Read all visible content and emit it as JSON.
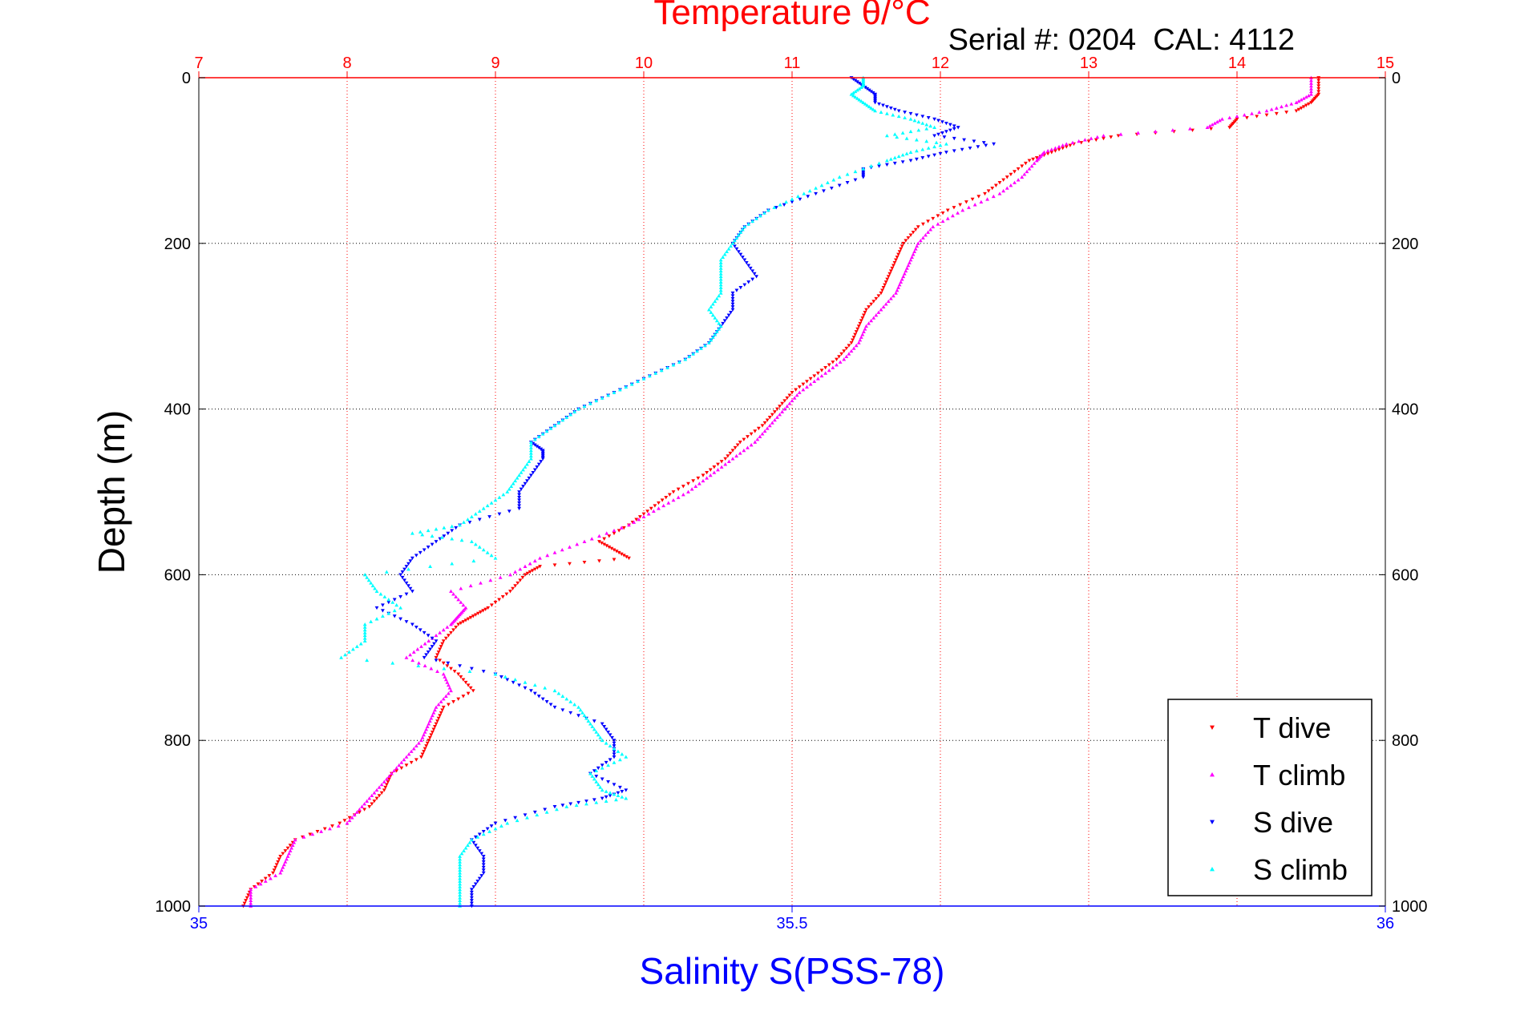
{
  "chart_data": {
    "type": "scatter",
    "title": "Temperature θ/°C",
    "subtitle": "Serial #: 0204  CAL: 4112",
    "ylabel": "Depth (m)",
    "xlabel_bottom": "Salinity S(PSS-78)",
    "xlabel_top": "Temperature θ/°C",
    "y_reversed": true,
    "ylim": [
      0,
      1000
    ],
    "yticks": [
      0,
      200,
      400,
      600,
      800,
      1000
    ],
    "x_top": {
      "label": "Temperature θ/°C",
      "lim": [
        7,
        15
      ],
      "ticks": [
        7,
        8,
        9,
        10,
        11,
        12,
        13,
        14,
        15
      ],
      "color": "#ff0000"
    },
    "x_bottom": {
      "label": "Salinity S(PSS-78)",
      "lim": [
        35,
        36
      ],
      "ticks": [
        "35",
        "35.5",
        "36"
      ],
      "tick_values": [
        35,
        35.5,
        36
      ],
      "color": "#0000ff"
    },
    "grid": true,
    "legend_position": "bottom-right",
    "series": [
      {
        "name": "T dive",
        "axis": "top",
        "color": "#ff0000",
        "marker": "triangle-down",
        "depth": [
          0,
          20,
          30,
          40,
          50,
          60,
          70,
          80,
          90,
          100,
          120,
          140,
          160,
          180,
          200,
          220,
          240,
          260,
          280,
          300,
          320,
          340,
          360,
          380,
          400,
          420,
          440,
          460,
          480,
          500,
          520,
          540,
          560,
          570,
          580,
          590,
          600,
          620,
          640,
          650,
          660,
          680,
          700,
          720,
          740,
          760,
          780,
          800,
          820,
          840,
          860,
          880,
          900,
          920,
          940,
          960,
          980,
          1000
        ],
        "values": [
          14.55,
          14.55,
          14.5,
          14.4,
          14.0,
          13.95,
          13.2,
          12.9,
          12.75,
          12.6,
          12.45,
          12.3,
          12.05,
          11.85,
          11.75,
          11.7,
          11.65,
          11.6,
          11.5,
          11.45,
          11.4,
          11.3,
          11.15,
          11.0,
          10.9,
          10.8,
          10.65,
          10.55,
          10.4,
          10.2,
          10.05,
          9.9,
          9.7,
          9.8,
          9.9,
          9.3,
          9.2,
          9.1,
          8.95,
          8.85,
          8.75,
          8.65,
          8.6,
          8.75,
          8.85,
          8.65,
          8.6,
          8.55,
          8.5,
          8.3,
          8.25,
          8.15,
          7.95,
          7.65,
          7.55,
          7.5,
          7.35,
          7.3
        ]
      },
      {
        "name": "T climb",
        "axis": "top",
        "color": "#ff00ff",
        "marker": "triangle-up",
        "depth": [
          0,
          20,
          30,
          40,
          50,
          60,
          70,
          80,
          90,
          100,
          120,
          140,
          160,
          180,
          200,
          220,
          240,
          260,
          280,
          300,
          320,
          340,
          360,
          380,
          400,
          420,
          440,
          460,
          480,
          500,
          520,
          540,
          560,
          580,
          600,
          620,
          640,
          650,
          660,
          680,
          700,
          720,
          740,
          760,
          780,
          800,
          820,
          840,
          860,
          880,
          900,
          920,
          940,
          960,
          980,
          1000
        ],
        "values": [
          14.5,
          14.5,
          14.4,
          14.2,
          13.9,
          13.8,
          13.1,
          12.85,
          12.7,
          12.65,
          12.55,
          12.4,
          12.15,
          11.95,
          11.85,
          11.8,
          11.75,
          11.7,
          11.6,
          11.5,
          11.45,
          11.35,
          11.2,
          11.05,
          10.95,
          10.85,
          10.75,
          10.6,
          10.45,
          10.3,
          10.1,
          9.9,
          9.6,
          9.3,
          9.1,
          8.7,
          8.8,
          8.75,
          8.7,
          8.55,
          8.4,
          8.65,
          8.7,
          8.6,
          8.55,
          8.5,
          8.4,
          8.3,
          8.2,
          8.1,
          8.0,
          7.65,
          7.6,
          7.55,
          7.35,
          7.35
        ]
      },
      {
        "name": "S dive",
        "axis": "bottom",
        "color": "#0000ff",
        "marker": "triangle-down",
        "depth": [
          0,
          10,
          20,
          30,
          40,
          50,
          60,
          70,
          80,
          90,
          100,
          110,
          120,
          140,
          160,
          180,
          200,
          220,
          240,
          260,
          280,
          300,
          320,
          340,
          360,
          380,
          400,
          420,
          440,
          450,
          460,
          480,
          500,
          520,
          540,
          560,
          580,
          600,
          620,
          640,
          660,
          680,
          700,
          720,
          740,
          760,
          780,
          800,
          820,
          840,
          860,
          870,
          880,
          900,
          920,
          940,
          960,
          980,
          1000
        ],
        "values": [
          35.55,
          35.56,
          35.57,
          35.57,
          35.59,
          35.62,
          35.64,
          35.62,
          35.67,
          35.63,
          35.6,
          35.56,
          35.56,
          35.52,
          35.48,
          35.46,
          35.45,
          35.46,
          35.47,
          35.45,
          35.45,
          35.44,
          35.43,
          35.41,
          35.38,
          35.35,
          35.32,
          35.3,
          35.28,
          35.29,
          35.29,
          35.28,
          35.27,
          35.27,
          35.22,
          35.2,
          35.18,
          35.17,
          35.18,
          35.15,
          35.18,
          35.2,
          35.19,
          35.25,
          35.28,
          35.3,
          35.34,
          35.35,
          35.35,
          35.33,
          35.36,
          35.34,
          35.3,
          35.25,
          35.23,
          35.24,
          35.24,
          35.23,
          35.23
        ]
      },
      {
        "name": "S climb",
        "axis": "bottom",
        "color": "#00ffff",
        "marker": "triangle-up",
        "depth": [
          0,
          10,
          20,
          30,
          40,
          50,
          60,
          70,
          80,
          90,
          100,
          120,
          140,
          160,
          180,
          200,
          220,
          240,
          260,
          280,
          300,
          320,
          340,
          360,
          380,
          400,
          420,
          440,
          460,
          480,
          500,
          520,
          540,
          550,
          560,
          580,
          600,
          620,
          640,
          660,
          680,
          700,
          720,
          740,
          760,
          780,
          800,
          820,
          840,
          860,
          870,
          880,
          900,
          920,
          940,
          960,
          980,
          1000
        ],
        "values": [
          35.56,
          35.56,
          35.55,
          35.56,
          35.57,
          35.6,
          35.62,
          35.58,
          35.63,
          35.6,
          35.58,
          35.54,
          35.51,
          35.48,
          35.46,
          35.45,
          35.44,
          35.44,
          35.44,
          35.43,
          35.44,
          35.43,
          35.41,
          35.38,
          35.35,
          35.32,
          35.3,
          35.28,
          35.28,
          35.27,
          35.26,
          35.24,
          35.22,
          35.18,
          35.23,
          35.25,
          35.14,
          35.15,
          35.17,
          35.14,
          35.14,
          35.12,
          35.25,
          35.3,
          35.32,
          35.33,
          35.34,
          35.36,
          35.33,
          35.34,
          35.36,
          35.31,
          35.26,
          35.23,
          35.22,
          35.22,
          35.22,
          35.22
        ]
      }
    ]
  }
}
